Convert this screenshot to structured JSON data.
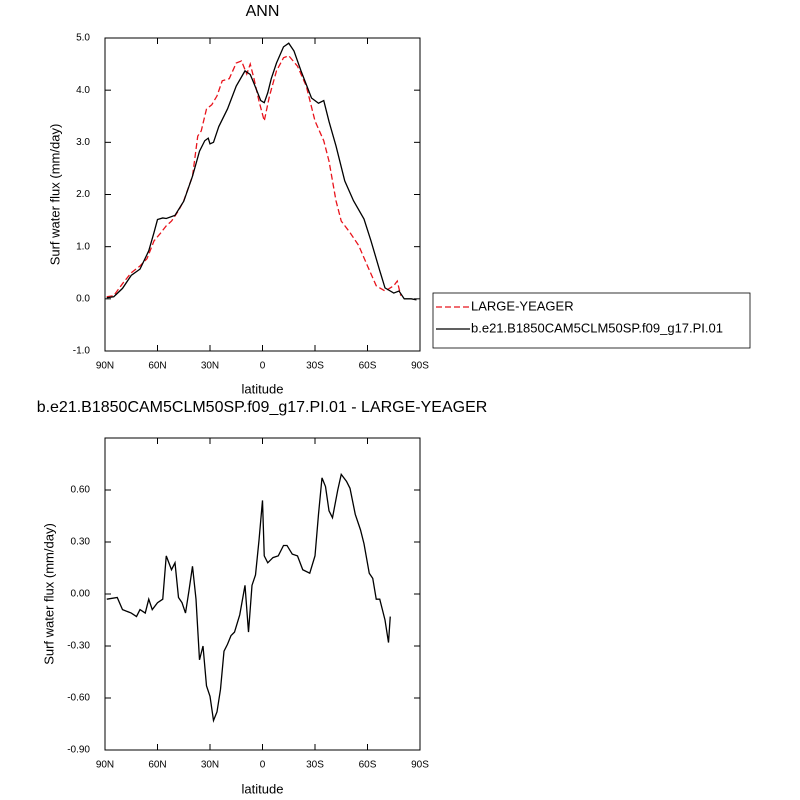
{
  "chart_data": [
    {
      "type": "line",
      "title": "ANN",
      "xlabel": "latitude",
      "ylabel": "Surf water flux (mm/day)",
      "xlim": [
        90,
        -90
      ],
      "xticks": [
        {
          "value": 90,
          "label": "90N"
        },
        {
          "value": 60,
          "label": "60N"
        },
        {
          "value": 30,
          "label": "30N"
        },
        0,
        {
          "value": -30,
          "label": "30S"
        },
        {
          "value": -60,
          "label": "60S"
        },
        {
          "value": -90,
          "label": "90S"
        }
      ],
      "ylim": [
        -1,
        5
      ],
      "yticks": [
        {
          "value": -1,
          "label": "-1.0"
        },
        {
          "value": 0,
          "label": "0.0"
        },
        {
          "value": 1,
          "label": "1.0"
        },
        {
          "value": 2,
          "label": "2.0"
        },
        {
          "value": 3,
          "label": "3.0"
        },
        {
          "value": 4,
          "label": "4.0"
        },
        {
          "value": 5,
          "label": "5.0"
        }
      ],
      "legend": "right",
      "series": [
        {
          "name": "LARGE-YEAGER",
          "color": "#e8141c",
          "style": "dashed",
          "x": [
            89,
            85,
            80,
            75,
            70,
            66,
            62,
            58,
            55,
            52,
            48,
            45,
            40,
            37,
            35,
            32,
            29,
            26,
            23,
            19,
            15,
            12,
            9,
            7,
            5,
            2,
            -1,
            -4,
            -8,
            -12,
            -15,
            -20,
            -25,
            -30,
            -35,
            -38,
            -42,
            -45,
            -50,
            -55,
            -60,
            -65,
            -70,
            -75,
            -77,
            -79
          ],
          "values": [
            0.04,
            0.06,
            0.29,
            0.5,
            0.63,
            0.77,
            1.11,
            1.27,
            1.4,
            1.49,
            1.69,
            1.88,
            2.35,
            3.12,
            3.22,
            3.64,
            3.72,
            3.89,
            4.18,
            4.22,
            4.52,
            4.56,
            4.31,
            4.5,
            4.24,
            3.79,
            3.41,
            3.89,
            4.37,
            4.62,
            4.66,
            4.46,
            4.08,
            3.41,
            3.03,
            2.64,
            1.88,
            1.49,
            1.27,
            1.02,
            0.63,
            0.25,
            0.15,
            0.25,
            0.34,
            0.06
          ]
        },
        {
          "name": "b.e21.B1850CAM5CLM50SP.f09_g17.PI.01",
          "color": "#000000",
          "style": "solid",
          "x": [
            89,
            85,
            80,
            75,
            70,
            65,
            62,
            60,
            57,
            55,
            50,
            45,
            40,
            36,
            33,
            31,
            30,
            28,
            25,
            20,
            15,
            10,
            7,
            5,
            1,
            -1,
            -3,
            -5,
            -8,
            -12,
            -15,
            -18,
            -22,
            -28,
            -32,
            -35,
            -38,
            -42,
            -47,
            -52,
            -58,
            -62,
            -67,
            -70,
            -75,
            -78,
            -81,
            -85,
            -88
          ],
          "values": [
            0.02,
            0.04,
            0.2,
            0.45,
            0.57,
            0.92,
            1.27,
            1.52,
            1.55,
            1.54,
            1.6,
            1.87,
            2.35,
            2.83,
            3.03,
            3.08,
            2.97,
            3.0,
            3.3,
            3.64,
            4.08,
            4.37,
            4.3,
            4.14,
            3.8,
            3.76,
            3.95,
            4.22,
            4.52,
            4.83,
            4.9,
            4.75,
            4.37,
            3.85,
            3.75,
            3.8,
            3.4,
            2.93,
            2.26,
            1.88,
            1.53,
            1.11,
            0.54,
            0.21,
            0.11,
            0.15,
            0,
            0,
            -0.02
          ]
        }
      ]
    },
    {
      "type": "line",
      "title": "b.e21.B1850CAM5CLM50SP.f09_g17.PI.01 - LARGE-YEAGER",
      "xlabel": "latitude",
      "ylabel": "Surf water flux (mm/day)",
      "xlim": [
        90,
        -90
      ],
      "xticks": [
        {
          "value": 90,
          "label": "90N"
        },
        {
          "value": 60,
          "label": "60N"
        },
        {
          "value": 30,
          "label": "30N"
        },
        0,
        {
          "value": -30,
          "label": "30S"
        },
        {
          "value": -60,
          "label": "60S"
        },
        {
          "value": -90,
          "label": "90S"
        }
      ],
      "ylim": [
        -0.9,
        0.9
      ],
      "yticks": [
        {
          "value": -0.9,
          "label": "-0.90"
        },
        {
          "value": -0.6,
          "label": "-0.60"
        },
        {
          "value": -0.3,
          "label": "-0.30"
        },
        {
          "value": 0,
          "label": "0.00"
        },
        {
          "value": 0.3,
          "label": "0.30"
        },
        {
          "value": 0.6,
          "label": "0.60"
        }
      ],
      "series": [
        {
          "color": "#000000",
          "style": "solid",
          "x": [
            89,
            83,
            80,
            75,
            72,
            70,
            67,
            65,
            63,
            60,
            57,
            55,
            52,
            50,
            48,
            46,
            44,
            42,
            40,
            38,
            36,
            34,
            32,
            30,
            28,
            26,
            24,
            22,
            20,
            18,
            16,
            13,
            10,
            8,
            6,
            4,
            2,
            0,
            -1,
            -3,
            -6,
            -9,
            -12,
            -14,
            -17,
            -20,
            -23,
            -27,
            -30,
            -32,
            -34,
            -36,
            -38,
            -40,
            -43,
            -45,
            -48,
            -50,
            -53,
            -56,
            -58,
            -61,
            -63,
            -65,
            -67,
            -70,
            -72,
            -73
          ],
          "values": [
            -0.03,
            -0.02,
            -0.09,
            -0.11,
            -0.13,
            -0.09,
            -0.11,
            -0.03,
            -0.09,
            -0.05,
            -0.03,
            0.22,
            0.14,
            0.18,
            -0.02,
            -0.05,
            -0.11,
            0.02,
            0.16,
            -0.03,
            -0.38,
            -0.3,
            -0.53,
            -0.59,
            -0.73,
            -0.68,
            -0.55,
            -0.33,
            -0.29,
            -0.24,
            -0.22,
            -0.12,
            0.05,
            -0.22,
            0.05,
            0.11,
            0.31,
            0.54,
            0.22,
            0.18,
            0.21,
            0.22,
            0.28,
            0.28,
            0.23,
            0.22,
            0.14,
            0.12,
            0.22,
            0.46,
            0.67,
            0.62,
            0.48,
            0.44,
            0.6,
            0.69,
            0.65,
            0.61,
            0.46,
            0.37,
            0.29,
            0.12,
            0.09,
            -0.03,
            -0.03,
            -0.15,
            -0.28,
            -0.13
          ]
        }
      ]
    }
  ]
}
